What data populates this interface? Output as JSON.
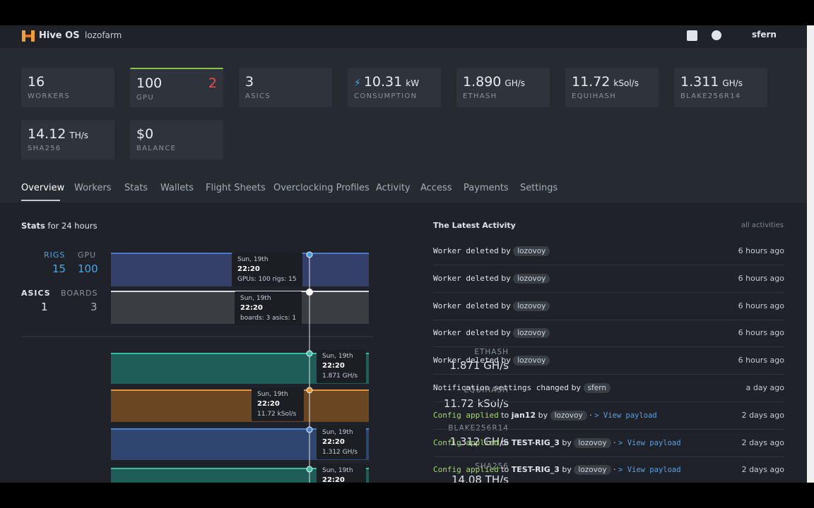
{
  "header": {
    "brand": "Hive OS",
    "farm": "lozofarm",
    "user": "sfern"
  },
  "cards": [
    {
      "value": "16",
      "label": "WORKERS"
    },
    {
      "value": "100",
      "extra": "2",
      "label": "GPU"
    },
    {
      "value": "3",
      "label": "ASICS"
    },
    {
      "value": "10.31",
      "unit": "kW",
      "label": "CONSUMPTION"
    },
    {
      "value": "1.890",
      "unit": "GH/s",
      "label": "ETHASH"
    },
    {
      "value": "11.72",
      "unit": "kSol/s",
      "label": "EQUIHASH"
    },
    {
      "value": "1.311",
      "unit": "GH/s",
      "label": "BLAKE256R14"
    },
    {
      "value": "14.12",
      "unit": "TH/s",
      "label": "SHA256"
    },
    {
      "value": "$0",
      "label": "BALANCE"
    }
  ],
  "tabs": [
    "Overview",
    "Workers",
    "Stats",
    "Wallets",
    "Flight Sheets",
    "Overclocking Profiles",
    "Activity",
    "Access",
    "Payments",
    "Settings"
  ],
  "stats": {
    "title": "Stats",
    "subtitle": "for 24 hours",
    "rigs_label": "RIGS",
    "rigs": "15",
    "gpu_label": "GPU",
    "gpu": "100",
    "asics_label": "ASICS",
    "asics": "1",
    "boards_label": "BOARDS",
    "boards": "3",
    "gpu_tooltip": {
      "day": "Sun, 19th",
      "time": "22:20",
      "text": "GPUs: 100 rigs: 15"
    },
    "asic_tooltip": {
      "day": "Sun, 19th",
      "time": "22:20",
      "text": "boards: 3 asics: 1"
    },
    "algos": [
      {
        "name": "ETHASH",
        "value": "1.871 GH/s",
        "tooltip": {
          "day": "Sun, 19th",
          "time": "22:20",
          "text": "1.871 GH/s"
        }
      },
      {
        "name": "EQUIHASH",
        "value": "11.72 kSol/s",
        "tooltip": {
          "day": "Sun, 19th",
          "time": "22:20",
          "text": "11.72 kSol/s"
        }
      },
      {
        "name": "BLAKE256R14",
        "value": "1.312 GH/s",
        "tooltip": {
          "day": "Sun, 19th",
          "time": "22:20",
          "text": "1.312 GH/s"
        }
      },
      {
        "name": "SHA256",
        "value": "14.08 TH/s",
        "tooltip": {
          "day": "Sun, 19th",
          "time": "22:20",
          "text": ""
        }
      }
    ]
  },
  "activity": {
    "title": "The Latest Activity",
    "link": "all activities",
    "items": [
      {
        "action": "Worker deleted",
        "by": "by",
        "user": "lozovoy",
        "time": "6 hours ago"
      },
      {
        "action": "Worker deleted",
        "by": "by",
        "user": "lozovoy",
        "time": "6 hours ago"
      },
      {
        "action": "Worker deleted",
        "by": "by",
        "user": "lozovoy",
        "time": "6 hours ago"
      },
      {
        "action": "Worker deleted",
        "by": "by",
        "user": "lozovoy",
        "time": "6 hours ago"
      },
      {
        "action": "Worker deleted",
        "by": "by",
        "user": "lozovoy",
        "time": "6 hours ago"
      },
      {
        "action": "Notification settings changed",
        "by": "by",
        "user": "sfern",
        "time": "a day ago"
      },
      {
        "action": "Config applied",
        "to": "to",
        "target": "jan12",
        "by": "by",
        "user": "lozovoy",
        "link": "> View payload",
        "time": "2 days ago"
      },
      {
        "action": "Config applied",
        "to": "to",
        "target": "TEST-RIG_3",
        "by": "by",
        "user": "lozovoy",
        "link": "> View payload",
        "time": "2 days ago"
      },
      {
        "action": "Config applied",
        "to": "to",
        "target": "TEST-RIG_3",
        "by": "by",
        "user": "lozovoy",
        "link": "> View payload",
        "time": "2 days ago"
      }
    ]
  }
}
